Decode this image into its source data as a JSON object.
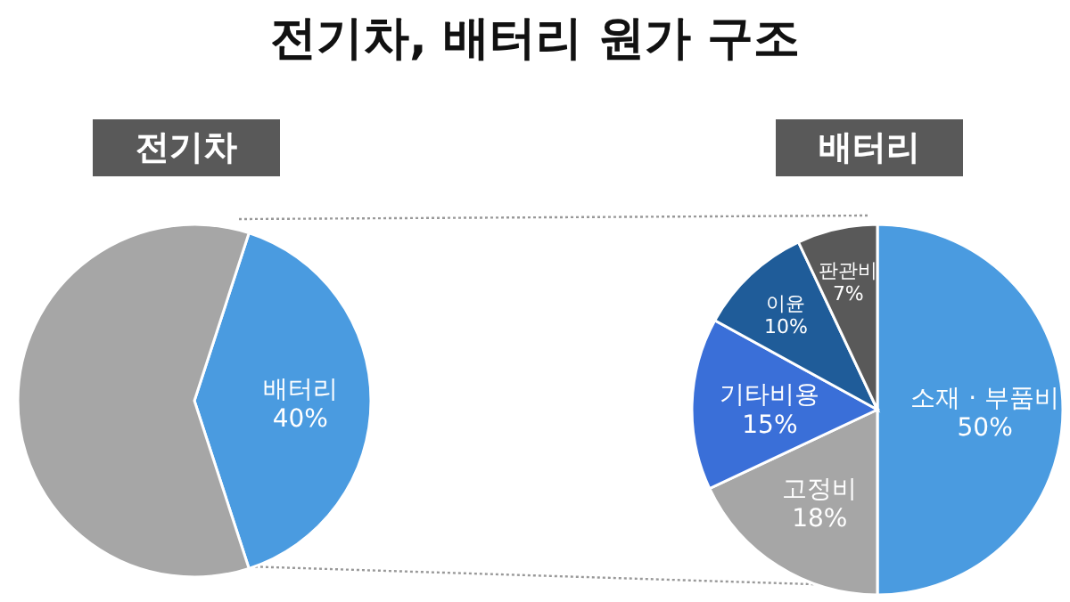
{
  "chart_data": [
    {
      "type": "pie",
      "title": "전기차, 배터리 원가 구조",
      "subtitle": "전기차",
      "categories": [
        "배터리",
        null
      ],
      "values": [
        40,
        60
      ],
      "value_labels": [
        "40%",
        null
      ],
      "colors": [
        "#4a9be0",
        "#a6a6a6"
      ]
    },
    {
      "type": "pie",
      "subtitle": "배터리",
      "categories": [
        "소재 · 부품비",
        "고정비",
        "기타비용",
        "이윤",
        "판관비"
      ],
      "values": [
        50,
        18,
        15,
        10,
        7
      ],
      "value_labels": [
        "50%",
        "18%",
        "15%",
        "10%",
        "7%"
      ],
      "colors": [
        "#4a9be0",
        "#a6a6a6",
        "#3a6fd8",
        "#1f5c99",
        "#595959"
      ]
    }
  ]
}
